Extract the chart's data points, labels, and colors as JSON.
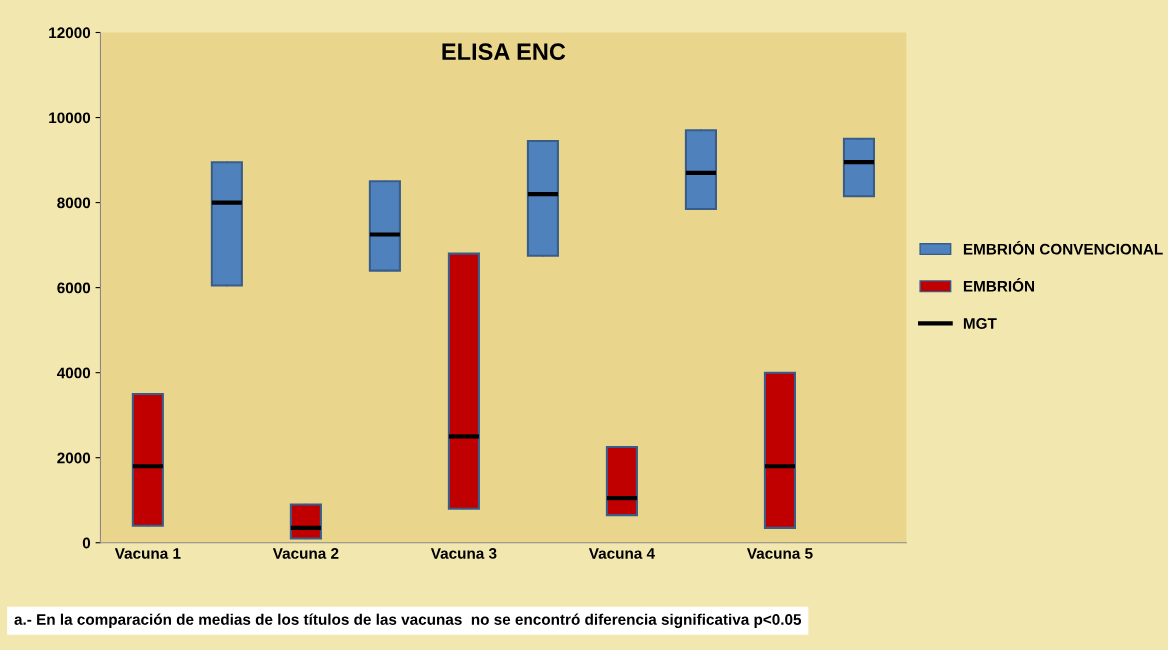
{
  "chart_data": {
    "type": "box",
    "title": "ELISA ENC",
    "categories": [
      "Vacuna 1",
      null,
      "Vacuna 2",
      null,
      "Vacuna 3",
      null,
      "Vacuna 4",
      null,
      "Vacuna 5",
      null
    ],
    "series": [
      {
        "name": "EMBRIÓN CONVENCIONAL",
        "color": "#4f81bd",
        "boxes": [
          null,
          {
            "low": 6050,
            "q1": 6050,
            "median": 8000,
            "q3": 8950,
            "high": 8950
          },
          null,
          {
            "low": 6400,
            "q1": 6400,
            "median": 7250,
            "q3": 8500,
            "high": 8500
          },
          null,
          {
            "low": 6750,
            "q1": 6750,
            "median": 8200,
            "q3": 9450,
            "high": 9450
          },
          null,
          {
            "low": 7850,
            "q1": 7850,
            "median": 8700,
            "q3": 9700,
            "high": 9700
          },
          null,
          {
            "low": 8150,
            "q1": 8150,
            "median": 8950,
            "q3": 9500,
            "high": 9500
          }
        ]
      },
      {
        "name": "EMBRIÓN",
        "color": "#c00000",
        "boxes": [
          {
            "low": 400,
            "q1": 400,
            "median": 1800,
            "q3": 3500,
            "high": 3500
          },
          null,
          {
            "low": 100,
            "q1": 100,
            "median": 350,
            "q3": 900,
            "high": 900
          },
          null,
          {
            "low": 800,
            "q1": 800,
            "median": 2500,
            "q3": 6800,
            "high": 6800
          },
          null,
          {
            "low": 650,
            "q1": 650,
            "median": 1050,
            "q3": 2250,
            "high": 2250
          },
          null,
          {
            "low": 350,
            "q1": 350,
            "median": 1800,
            "q3": 4000,
            "high": 4000
          },
          null
        ]
      }
    ],
    "ylim": [
      0,
      12000
    ],
    "yticks": [
      0,
      2000,
      4000,
      6000,
      8000,
      10000,
      12000
    ],
    "grid": false,
    "legend": "right",
    "annotations": [
      "MGT",
      "a.- En la comparación de medias de los títulos de las vacunas  no se encontró diferencia significativa p<0.05"
    ]
  }
}
